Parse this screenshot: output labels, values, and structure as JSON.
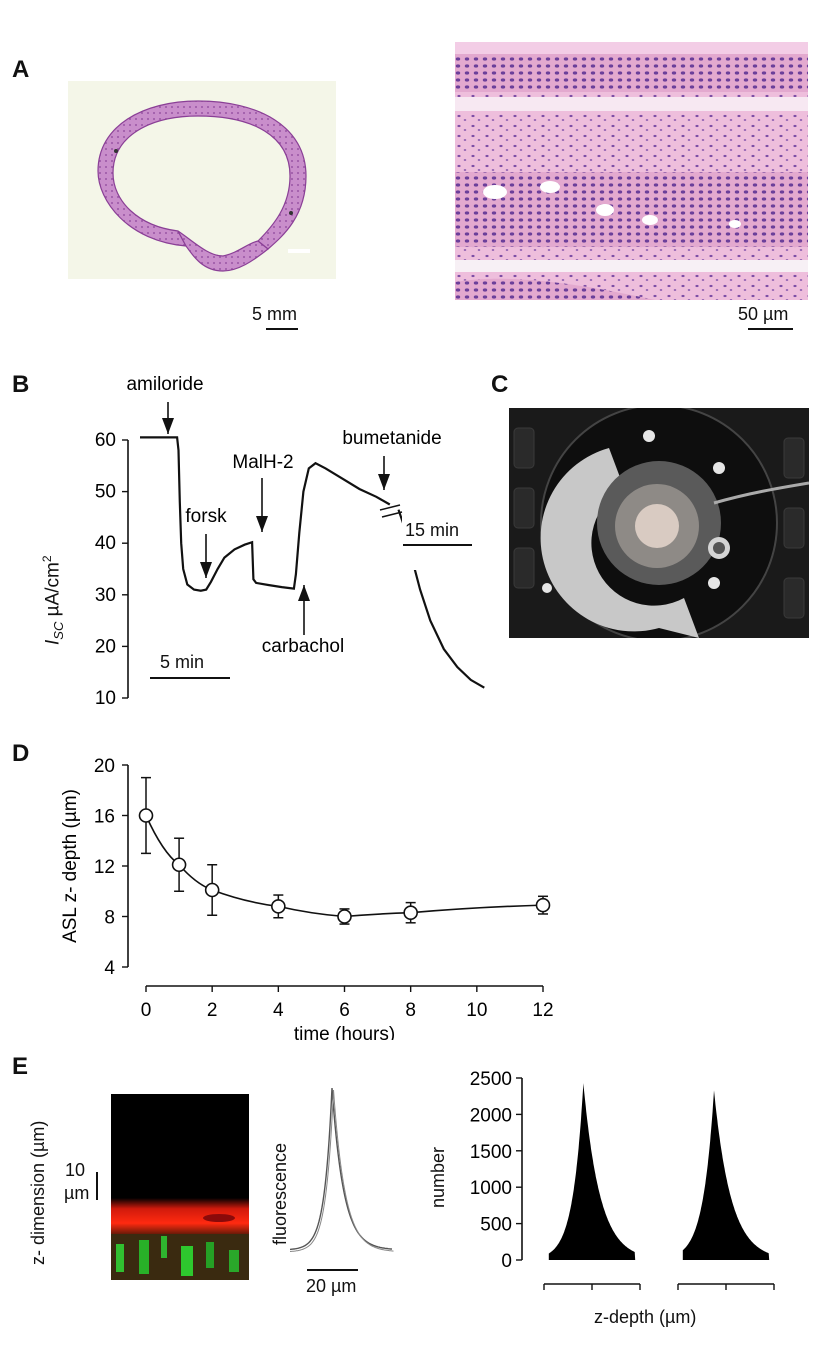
{
  "panels": {
    "A": {
      "letter": "A",
      "left_scale": "5 mm",
      "right_scale": "50 µm"
    },
    "B": {
      "letter": "B",
      "ylabel_main": "I",
      "ylabel_sub": "SC",
      "ylabel_unit": "µA/cm",
      "ylabel_sup": "2",
      "scale_left": "5 min",
      "scale_right": "15 min",
      "annotations": [
        "amiloride",
        "forsk",
        "MalH-2",
        "carbachol",
        "bumetanide"
      ]
    },
    "C": {
      "letter": "C"
    },
    "D": {
      "letter": "D"
    },
    "E": {
      "letter": "E",
      "ylabel": "z- dimension (µm)",
      "scale_y_value": "10",
      "scale_y_unit": "µm",
      "fluor_ylabel": "fluorescence",
      "fluor_scale": "20 µm",
      "hist_ylabel": "number",
      "hist_xlabel": "z-depth (µm)"
    }
  },
  "chart_data": [
    {
      "type": "line",
      "id": "B",
      "ylabel": "Isc µA/cm2",
      "yticks": [
        10,
        20,
        30,
        40,
        50,
        60
      ],
      "ylim": [
        10,
        60
      ],
      "trace": [
        [
          0,
          60.5
        ],
        [
          5.5,
          60.5
        ],
        [
          5.7,
          58
        ],
        [
          5.9,
          48
        ],
        [
          6.1,
          40
        ],
        [
          6.4,
          35
        ],
        [
          7,
          32
        ],
        [
          8,
          31
        ],
        [
          9,
          30.8
        ],
        [
          9.8,
          31
        ],
        [
          10.5,
          32.5
        ],
        [
          11.5,
          35
        ],
        [
          12.5,
          37.2
        ],
        [
          14,
          38.8
        ],
        [
          15.5,
          39.7
        ],
        [
          16.6,
          40.2
        ],
        [
          16.8,
          33
        ],
        [
          17.2,
          32.3
        ],
        [
          19,
          31.9
        ],
        [
          21,
          31.5
        ],
        [
          22.8,
          31.2
        ],
        [
          23.1,
          34
        ],
        [
          23.6,
          42
        ],
        [
          24.2,
          50
        ],
        [
          25,
          54.5
        ],
        [
          26,
          55.5
        ],
        [
          27.5,
          54.5
        ],
        [
          30,
          52.5
        ],
        [
          32.5,
          50.5
        ],
        [
          35,
          49
        ],
        [
          37,
          47.5
        ]
      ],
      "trace2": [
        [
          38.3,
          46.5
        ],
        [
          39.2,
          43
        ],
        [
          40.3,
          37
        ],
        [
          41.5,
          31
        ],
        [
          43,
          25
        ],
        [
          45,
          19.5
        ],
        [
          47,
          16
        ],
        [
          49,
          13.5
        ],
        [
          51,
          12
        ]
      ],
      "annotations": [
        {
          "label": "amiloride",
          "x": 5.6,
          "dir": "down"
        },
        {
          "label": "forsk",
          "x": 10,
          "dir": "down"
        },
        {
          "label": "MalH-2",
          "x": 16.5,
          "dir": "down"
        },
        {
          "label": "carbachol",
          "x": 23,
          "dir": "up"
        },
        {
          "label": "bumetanide",
          "x": 37.5,
          "dir": "down"
        }
      ]
    },
    {
      "type": "scatter",
      "id": "D",
      "xlabel": "time (hours)",
      "ylabel": "ASL z- depth (µm)",
      "xticks": [
        0,
        2,
        4,
        6,
        8,
        10,
        12
      ],
      "yticks": [
        4,
        8,
        12,
        16,
        20
      ],
      "xlim": [
        0,
        12
      ],
      "ylim": [
        4,
        20
      ],
      "points": [
        {
          "x": 0,
          "y": 16,
          "err": 3.0
        },
        {
          "x": 1,
          "y": 12.1,
          "err": 2.1
        },
        {
          "x": 2,
          "y": 10.1,
          "err": 2.0
        },
        {
          "x": 4,
          "y": 8.8,
          "err": 0.9
        },
        {
          "x": 6,
          "y": 8.0,
          "err": 0.6
        },
        {
          "x": 8,
          "y": 8.3,
          "err": 0.8
        },
        {
          "x": 12,
          "y": 8.9,
          "err": 0.7
        }
      ]
    },
    {
      "type": "bar",
      "id": "E-histogram",
      "xlabel": "z-depth (µm)",
      "ylabel": "number",
      "yticks": [
        0,
        500,
        1000,
        1500,
        2000,
        2500
      ],
      "ylim": [
        0,
        2500
      ],
      "xticks": [
        0,
        10,
        20
      ],
      "histograms": [
        {
          "peak_x": 8.2,
          "peak": 2430,
          "left_width": 2.4,
          "right_width": 3.8
        },
        {
          "peak_x": 7.5,
          "peak": 2330,
          "left_width": 2.5,
          "right_width": 3.9
        }
      ]
    }
  ]
}
